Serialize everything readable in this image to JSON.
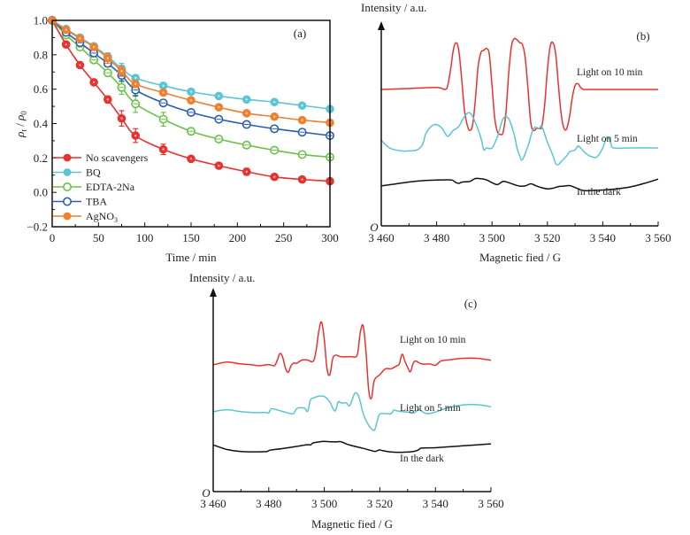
{
  "chart_data": [
    {
      "panel": "(a)",
      "type": "line",
      "title": "",
      "xlabel": "Time / min",
      "ylabel_main": "ρ",
      "ylabel_sub1": "t",
      "ylabel_sep": " / ",
      "ylabel_sub2": "0",
      "ylabel": "ρt / ρ0",
      "xlim": [
        0,
        300
      ],
      "ylim": [
        -0.2,
        1.0
      ],
      "xticks": [
        0,
        50,
        100,
        150,
        200,
        250,
        300
      ],
      "xtick_labels": [
        "0",
        "50",
        "100",
        "150",
        "200",
        "250",
        "300"
      ],
      "yticks": [
        -0.2,
        0.0,
        0.2,
        0.4,
        0.6,
        0.8,
        1.0
      ],
      "ytick_labels": [
        "−0.2",
        "0.0",
        "0.2",
        "0.4",
        "0.6",
        "0.8",
        "1.0"
      ],
      "legend_position": "bottom-left",
      "grid": false,
      "x": [
        0,
        15,
        30,
        45,
        60,
        75,
        90,
        120,
        150,
        180,
        210,
        240,
        270,
        300
      ],
      "series": [
        {
          "name": "No scavengers",
          "label_main": "No scavengers",
          "label_sub": "",
          "color": "#e8322e",
          "marker": "filled",
          "values": [
            1.0,
            0.86,
            0.74,
            0.64,
            0.54,
            0.43,
            0.33,
            0.25,
            0.195,
            0.155,
            0.12,
            0.09,
            0.075,
            0.065
          ],
          "errors": [
            0,
            0,
            0,
            0,
            0.02,
            0.045,
            0.04,
            0.03,
            0,
            0,
            0.02,
            0,
            0,
            0
          ]
        },
        {
          "name": "BQ",
          "label_main": "BQ",
          "label_sub": "",
          "color": "#5bc5d6",
          "marker": "filled",
          "values": [
            1.0,
            0.95,
            0.9,
            0.85,
            0.79,
            0.72,
            0.665,
            0.62,
            0.585,
            0.56,
            0.54,
            0.525,
            0.505,
            0.485
          ],
          "errors": [
            0,
            0,
            0,
            0,
            0.02,
            0.03,
            0.01,
            0,
            0,
            0,
            0,
            0,
            0,
            0
          ]
        },
        {
          "name": "EDTA-2Na",
          "label_main": "EDTA-2Na",
          "label_sub": "",
          "color": "#6cc04a",
          "marker": "open",
          "values": [
            1.0,
            0.915,
            0.845,
            0.77,
            0.695,
            0.61,
            0.515,
            0.425,
            0.355,
            0.31,
            0.275,
            0.245,
            0.22,
            0.205
          ],
          "errors": [
            0,
            0,
            0,
            0,
            0,
            0.04,
            0.05,
            0.04,
            0.02,
            0,
            0,
            0,
            0,
            0
          ]
        },
        {
          "name": "TBA",
          "label_main": "TBA",
          "label_sub": "",
          "color": "#2a5db0",
          "marker": "open",
          "values": [
            1.0,
            0.93,
            0.87,
            0.81,
            0.75,
            0.68,
            0.595,
            0.52,
            0.465,
            0.425,
            0.395,
            0.37,
            0.35,
            0.33
          ],
          "errors": [
            0,
            0,
            0,
            0,
            0.02,
            0.035,
            0.035,
            0.015,
            0,
            0,
            0,
            0,
            0,
            0
          ]
        },
        {
          "name": "AgNO3",
          "label_main": "AgNO",
          "label_sub": "3",
          "color": "#f07f2e",
          "marker": "filled",
          "values": [
            1.0,
            0.945,
            0.895,
            0.845,
            0.78,
            0.705,
            0.63,
            0.58,
            0.535,
            0.495,
            0.46,
            0.44,
            0.42,
            0.405
          ],
          "errors": [
            0,
            0,
            0,
            0,
            0.03,
            0.03,
            0.02,
            0,
            0,
            0,
            0,
            0,
            0,
            0
          ]
        }
      ]
    },
    {
      "panel": "(b)",
      "type": "line",
      "title": "",
      "xlabel": "Magnetic fied / G",
      "ylabel": "Intensity / a.u.",
      "origin_label": "O",
      "xlim": [
        3460,
        3560
      ],
      "ylim_note": "arbitrary units, no y ticks",
      "xticks": [
        3460,
        3480,
        3500,
        3520,
        3540,
        3560
      ],
      "xtick_labels": [
        "3 460",
        "3 480",
        "3 500",
        "3 520",
        "3 540",
        "3 560"
      ],
      "grid": false,
      "series": [
        {
          "name": "Light on 10 min",
          "color": "#e8322e",
          "x": [
            3460,
            3470,
            3480,
            3483,
            3484,
            3485,
            3486,
            3487,
            3488,
            3489,
            3490,
            3491,
            3492,
            3493,
            3494,
            3495,
            3496,
            3497,
            3498,
            3499,
            3500,
            3501,
            3502,
            3503,
            3504,
            3505,
            3506,
            3507,
            3508,
            3509,
            3510,
            3511,
            3512,
            3513,
            3514,
            3515,
            3516,
            3517,
            3518,
            3519,
            3520,
            3521,
            3522,
            3523,
            3524,
            3525,
            3526,
            3527,
            3528,
            3529,
            3530,
            3531,
            3532,
            3533,
            3534,
            3536,
            3545,
            3560
          ],
          "values": [
            0.7,
            0.705,
            0.71,
            0.7,
            0.72,
            0.8,
            0.9,
            0.94,
            0.9,
            0.76,
            0.6,
            0.52,
            0.49,
            0.52,
            0.65,
            0.82,
            0.89,
            0.9,
            0.91,
            0.88,
            0.72,
            0.55,
            0.48,
            0.47,
            0.48,
            0.58,
            0.78,
            0.92,
            0.96,
            0.955,
            0.94,
            0.93,
            0.86,
            0.7,
            0.53,
            0.49,
            0.5,
            0.5,
            0.51,
            0.62,
            0.8,
            0.92,
            0.94,
            0.88,
            0.72,
            0.57,
            0.5,
            0.5,
            0.56,
            0.66,
            0.72,
            0.73,
            0.71,
            0.7,
            0.7,
            0.7,
            0.7,
            0.7
          ]
        },
        {
          "name": "Light on 5 min",
          "color": "#5bc5d6",
          "x": [
            3460,
            3463,
            3467,
            3470,
            3473,
            3475,
            3476,
            3478,
            3480,
            3482,
            3484,
            3486,
            3488,
            3490,
            3492,
            3494,
            3496,
            3497,
            3498,
            3500,
            3502,
            3504,
            3506,
            3508,
            3509,
            3510,
            3511,
            3513,
            3515,
            3517,
            3518,
            3520,
            3522,
            3523,
            3524,
            3525,
            3527,
            3528,
            3530,
            3531,
            3532,
            3534,
            3536,
            3538,
            3540,
            3541,
            3542,
            3543,
            3544,
            3550,
            3560
          ],
          "values": [
            0.44,
            0.4,
            0.385,
            0.385,
            0.39,
            0.42,
            0.47,
            0.51,
            0.52,
            0.5,
            0.46,
            0.49,
            0.51,
            0.56,
            0.58,
            0.53,
            0.45,
            0.39,
            0.4,
            0.4,
            0.46,
            0.55,
            0.55,
            0.47,
            0.4,
            0.36,
            0.34,
            0.41,
            0.5,
            0.5,
            0.51,
            0.43,
            0.36,
            0.32,
            0.315,
            0.33,
            0.36,
            0.38,
            0.39,
            0.41,
            0.4,
            0.37,
            0.355,
            0.355,
            0.4,
            0.44,
            0.455,
            0.42,
            0.4,
            0.4,
            0.4
          ]
        },
        {
          "name": "In the dark",
          "color": "#111111",
          "x": [
            3460,
            3465,
            3470,
            3475,
            3480,
            3485,
            3486,
            3487,
            3488,
            3489,
            3490,
            3492,
            3494,
            3496,
            3498,
            3500,
            3502,
            3504,
            3506,
            3508,
            3510,
            3512,
            3514,
            3516,
            3518,
            3520,
            3522,
            3524,
            3526,
            3528,
            3530,
            3532,
            3534,
            3536,
            3540,
            3545,
            3550,
            3555,
            3560
          ],
          "values": [
            0.205,
            0.215,
            0.225,
            0.232,
            0.235,
            0.236,
            0.232,
            0.222,
            0.218,
            0.224,
            0.226,
            0.228,
            0.243,
            0.242,
            0.236,
            0.222,
            0.212,
            0.228,
            0.222,
            0.212,
            0.204,
            0.205,
            0.216,
            0.205,
            0.196,
            0.19,
            0.193,
            0.202,
            0.204,
            0.207,
            0.197,
            0.185,
            0.18,
            0.182,
            0.184,
            0.19,
            0.2,
            0.218,
            0.24
          ]
        }
      ]
    },
    {
      "panel": "(c)",
      "type": "line",
      "title": "",
      "xlabel": "Magnetic fied / G",
      "ylabel": "Intensity / a.u.",
      "origin_label": "O",
      "xlim": [
        3460,
        3560
      ],
      "ylim_note": "arbitrary units, no y ticks",
      "xticks": [
        3460,
        3480,
        3500,
        3520,
        3540,
        3560
      ],
      "xtick_labels": [
        "3 460",
        "3 480",
        "3 500",
        "3 520",
        "3 540",
        "3 560"
      ],
      "grid": false,
      "series": [
        {
          "name": "Light on 10 min",
          "color": "#e8322e",
          "x": [
            3460,
            3465,
            3470,
            3473,
            3475,
            3477,
            3480,
            3482,
            3483,
            3484,
            3485,
            3486,
            3487,
            3488,
            3489,
            3490,
            3492,
            3494,
            3496,
            3497,
            3498,
            3499,
            3500,
            3501,
            3502,
            3503,
            3504,
            3506,
            3508,
            3510,
            3511,
            3512,
            3513,
            3514,
            3515,
            3516,
            3517,
            3518,
            3520,
            3522,
            3524,
            3526,
            3527,
            3528,
            3529,
            3530,
            3531,
            3532,
            3533,
            3535,
            3538,
            3540,
            3542,
            3545,
            3550,
            3555,
            3560
          ],
          "values": [
            0.65,
            0.665,
            0.655,
            0.652,
            0.648,
            0.646,
            0.652,
            0.646,
            0.672,
            0.708,
            0.69,
            0.635,
            0.612,
            0.645,
            0.66,
            0.658,
            0.675,
            0.675,
            0.668,
            0.72,
            0.82,
            0.87,
            0.78,
            0.63,
            0.6,
            0.68,
            0.7,
            0.692,
            0.692,
            0.692,
            0.69,
            0.71,
            0.82,
            0.85,
            0.72,
            0.52,
            0.48,
            0.57,
            0.6,
            0.63,
            0.63,
            0.645,
            0.655,
            0.705,
            0.67,
            0.638,
            0.615,
            0.658,
            0.67,
            0.655,
            0.655,
            0.648,
            0.67,
            0.676,
            0.684,
            0.684,
            0.674
          ]
        },
        {
          "name": "Light on 5 min",
          "color": "#5bc5d6",
          "x": [
            3460,
            3465,
            3470,
            3475,
            3479,
            3480,
            3481,
            3484,
            3488,
            3489,
            3490,
            3491,
            3493,
            3494,
            3495,
            3496,
            3498,
            3500,
            3502,
            3503,
            3504,
            3505,
            3506,
            3507,
            3508,
            3509,
            3510,
            3511,
            3512,
            3513,
            3514,
            3516,
            3518,
            3519,
            3520,
            3522,
            3524,
            3525,
            3526,
            3528,
            3530,
            3532,
            3533,
            3534,
            3535,
            3537,
            3540,
            3545,
            3550,
            3555,
            3560
          ],
          "values": [
            0.41,
            0.42,
            0.41,
            0.405,
            0.406,
            0.403,
            0.425,
            0.415,
            0.4,
            0.402,
            0.425,
            0.43,
            0.428,
            0.412,
            0.47,
            0.48,
            0.49,
            0.488,
            0.46,
            0.43,
            0.415,
            0.46,
            0.455,
            0.455,
            0.455,
            0.44,
            0.47,
            0.505,
            0.5,
            0.46,
            0.4,
            0.34,
            0.315,
            0.36,
            0.398,
            0.4,
            0.4,
            0.418,
            0.415,
            0.41,
            0.408,
            0.404,
            0.41,
            0.422,
            0.413,
            0.4,
            0.408,
            0.432,
            0.445,
            0.446,
            0.436
          ]
        },
        {
          "name": "In the dark",
          "color": "#111111",
          "x": [
            3460,
            3465,
            3470,
            3475,
            3479,
            3480,
            3481,
            3485,
            3490,
            3494,
            3495,
            3496,
            3498,
            3500,
            3502,
            3504,
            3506,
            3508,
            3510,
            3514,
            3518,
            3519,
            3520,
            3521,
            3524,
            3528,
            3532,
            3534,
            3535,
            3540,
            3545,
            3550,
            3555,
            3560
          ],
          "values": [
            0.24,
            0.216,
            0.206,
            0.204,
            0.205,
            0.21,
            0.214,
            0.221,
            0.232,
            0.241,
            0.239,
            0.25,
            0.255,
            0.258,
            0.256,
            0.255,
            0.256,
            0.244,
            0.236,
            0.222,
            0.207,
            0.21,
            0.214,
            0.21,
            0.203,
            0.202,
            0.206,
            0.215,
            0.223,
            0.225,
            0.23,
            0.235,
            0.24,
            0.245
          ]
        }
      ]
    }
  ]
}
